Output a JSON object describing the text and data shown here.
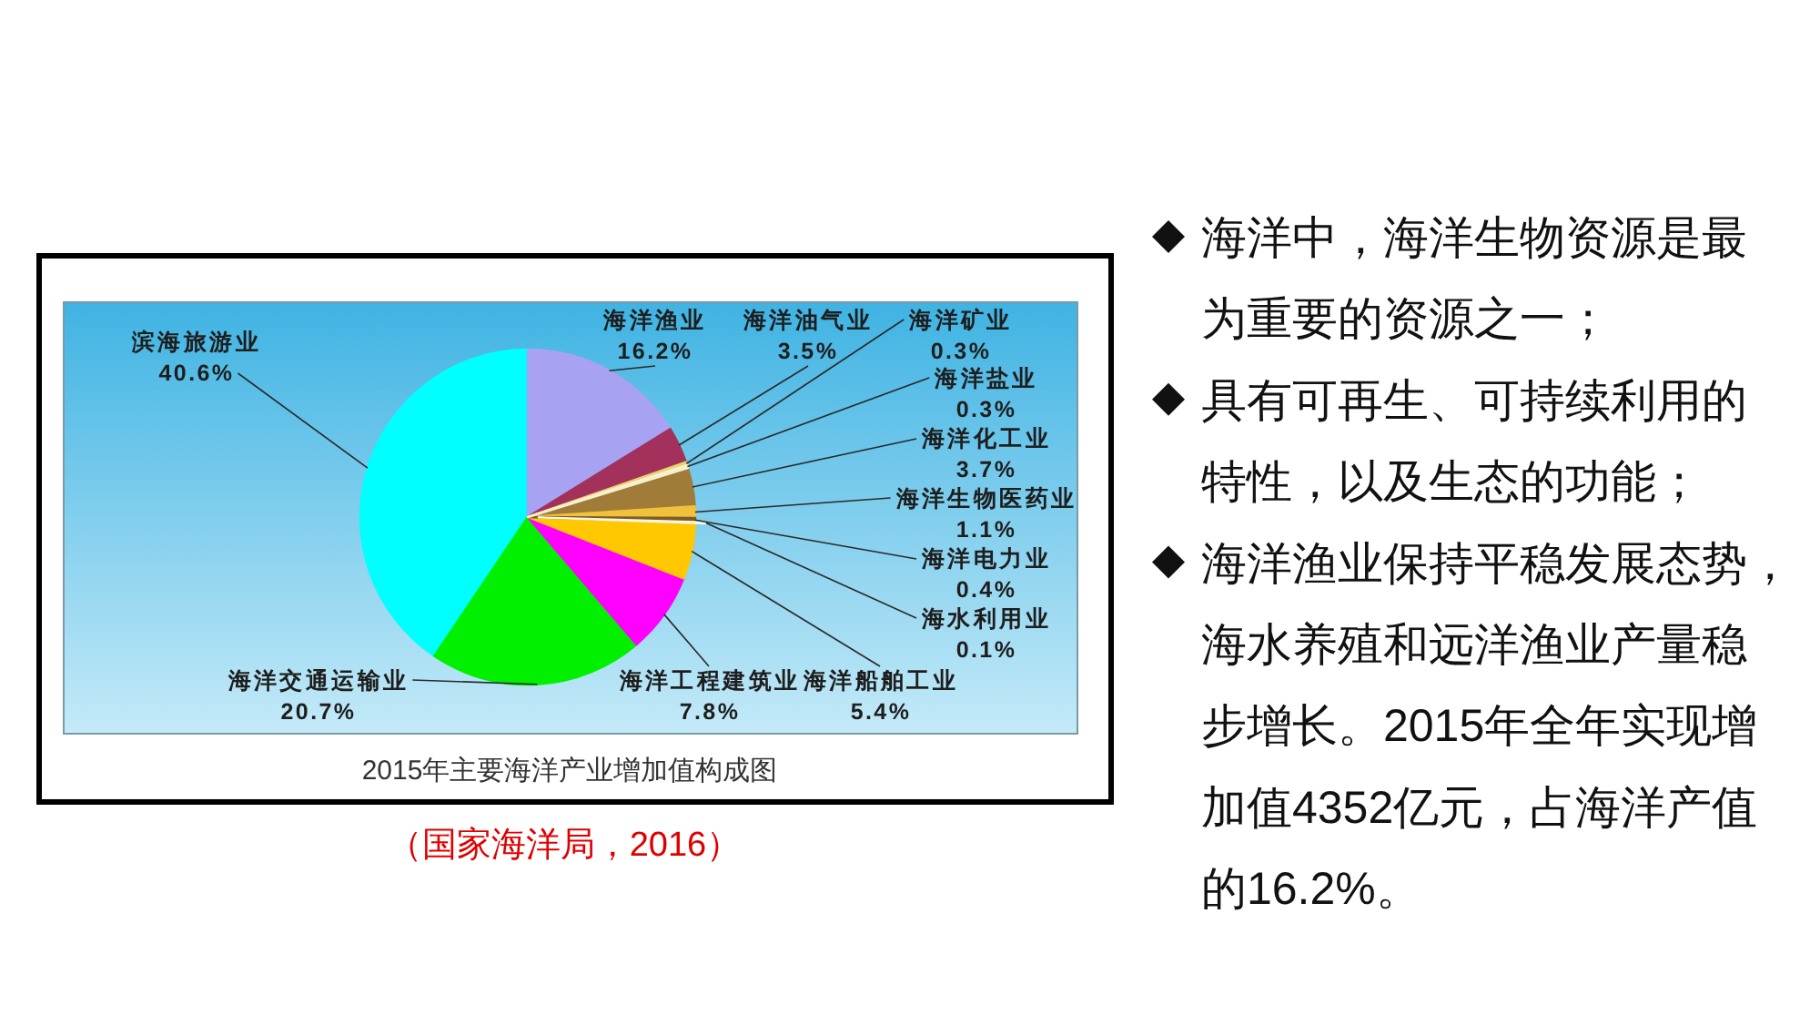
{
  "chart_data": {
    "type": "pie",
    "title": "2015年主要海洋产业增加值构成图",
    "categories": [
      "海洋渔业",
      "海洋油气业",
      "海洋矿业",
      "海洋盐业",
      "海洋化工业",
      "海洋生物医药业",
      "海洋电力业",
      "海水利用业",
      "海洋船舶工业",
      "海洋工程建筑业",
      "海洋交通运输业",
      "滨海旅游业"
    ],
    "values": [
      16.2,
      3.5,
      0.3,
      0.3,
      3.7,
      1.1,
      0.4,
      0.1,
      5.4,
      7.8,
      20.7,
      40.6
    ],
    "colors": [
      "#a7a2f2",
      "#a2325c",
      "#e8d46a",
      "#f6efd2",
      "#a07c38",
      "#f0c23c",
      "#7e5c22",
      "#fbf7e6",
      "#ffc800",
      "#ff00ff",
      "#00f000",
      "#00ffff"
    ],
    "value_labels": [
      "16.2%",
      "3.5%",
      "0.3%",
      "0.3%",
      "3.7%",
      "1.1%",
      "0.4%",
      "0.1%",
      "5.4%",
      "7.8%",
      "20.7%",
      "40.6%"
    ],
    "annotations": [
      "（国家海洋局，2016）",
      "海洋中，海洋生物资源是最为重要的资源之一；",
      "具有可再生、可持续利用的特性，以及生态的功能；",
      "海洋渔业保持平稳发展态势，海水养殖和远洋渔业产量稳步增长。2015年全年实现增加值4352亿元，占海洋产值的16.2%。"
    ]
  }
}
